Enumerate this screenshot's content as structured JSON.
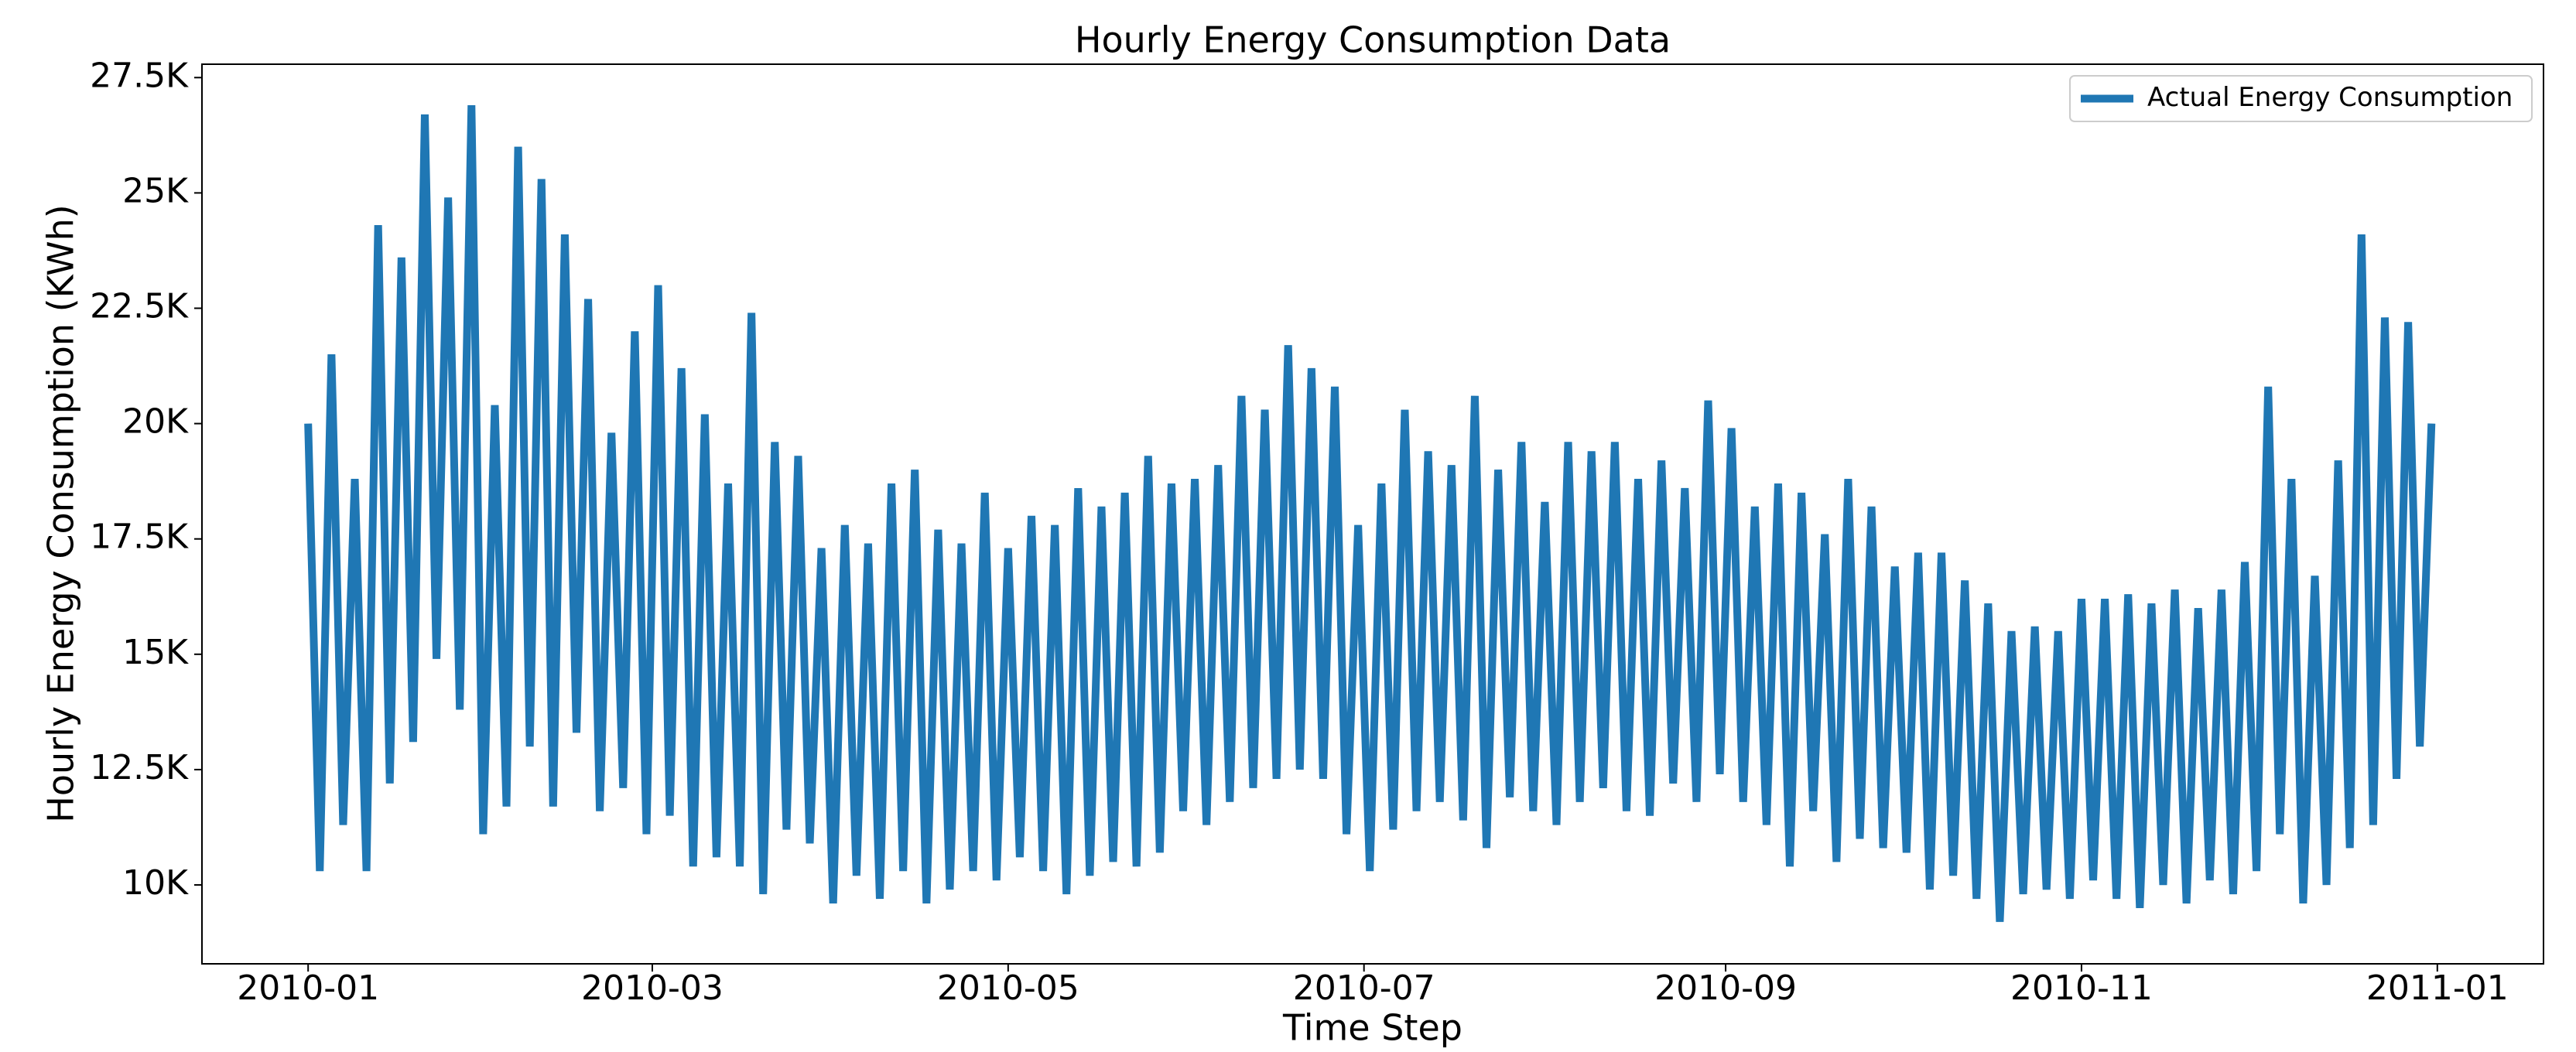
{
  "chart_data": {
    "type": "line",
    "title": "Hourly Energy Consumption Data",
    "x_label": "Time Step",
    "y_label": "Hourly Energy Consumption (KWh)",
    "xlim": [
      -18.2,
      383.2
    ],
    "xticks": [
      {
        "value": 0,
        "label": "2010-01"
      },
      {
        "value": 59,
        "label": "2010-03"
      },
      {
        "value": 120,
        "label": "2010-05"
      },
      {
        "value": 181,
        "label": "2010-07"
      },
      {
        "value": 243,
        "label": "2010-09"
      },
      {
        "value": 304,
        "label": "2010-11"
      },
      {
        "value": 365,
        "label": "2011-01"
      }
    ],
    "ylim": [
      8290,
      27790
    ],
    "yticks": [
      {
        "value": 10000,
        "label": "10K"
      },
      {
        "value": 12500,
        "label": "12.5K"
      },
      {
        "value": 15000,
        "label": "15K"
      },
      {
        "value": 17500,
        "label": "17.5K"
      },
      {
        "value": 20000,
        "label": "20K"
      },
      {
        "value": 22500,
        "label": "22.5K"
      },
      {
        "value": 25000,
        "label": "25K"
      },
      {
        "value": 27500,
        "label": "27.5K"
      }
    ],
    "grid": false,
    "legend": "upper right",
    "x": [
      0,
      2,
      4,
      6,
      8,
      10,
      12,
      14,
      16,
      18,
      20,
      22,
      24,
      26,
      28,
      30,
      32,
      34,
      36,
      38,
      40,
      42,
      44,
      46,
      48,
      50,
      52,
      54,
      56,
      58,
      60,
      62,
      64,
      66,
      68,
      70,
      72,
      74,
      76,
      78,
      80,
      82,
      84,
      86,
      88,
      90,
      92,
      94,
      96,
      98,
      100,
      102,
      104,
      106,
      108,
      110,
      112,
      114,
      116,
      118,
      120,
      122,
      124,
      126,
      128,
      130,
      132,
      134,
      136,
      138,
      140,
      142,
      144,
      146,
      148,
      150,
      152,
      154,
      156,
      158,
      160,
      162,
      164,
      166,
      168,
      170,
      172,
      174,
      176,
      178,
      180,
      182,
      184,
      186,
      188,
      190,
      192,
      194,
      196,
      198,
      200,
      202,
      204,
      206,
      208,
      210,
      212,
      214,
      216,
      218,
      220,
      222,
      224,
      226,
      228,
      230,
      232,
      234,
      236,
      238,
      240,
      242,
      244,
      246,
      248,
      250,
      252,
      254,
      256,
      258,
      260,
      262,
      264,
      266,
      268,
      270,
      272,
      274,
      276,
      278,
      280,
      282,
      284,
      286,
      288,
      290,
      292,
      294,
      296,
      298,
      300,
      302,
      304,
      306,
      308,
      310,
      312,
      314,
      316,
      318,
      320,
      322,
      324,
      326,
      328,
      330,
      332,
      334,
      336,
      338,
      340,
      342,
      344,
      346,
      348,
      350,
      352,
      354,
      356,
      358,
      360,
      362,
      364
    ],
    "series": [
      {
        "name": "Actual Energy Consumption",
        "color": "#1f77b4",
        "values": [
          20000,
          10300,
          21500,
          11300,
          18800,
          10300,
          24300,
          12200,
          23600,
          13100,
          26700,
          14900,
          24900,
          13800,
          26900,
          11100,
          20400,
          11700,
          26000,
          13000,
          25300,
          11700,
          24100,
          13300,
          22700,
          11600,
          19800,
          12100,
          22000,
          11100,
          23000,
          11500,
          21200,
          10400,
          20200,
          10600,
          18700,
          10400,
          22400,
          9800,
          19600,
          11200,
          19300,
          10900,
          17300,
          9600,
          17800,
          10200,
          17400,
          9700,
          18700,
          10300,
          19000,
          9600,
          17700,
          9900,
          17400,
          10300,
          18500,
          10100,
          17300,
          10600,
          18000,
          10300,
          17800,
          9800,
          18600,
          10200,
          18200,
          10500,
          18500,
          10400,
          19300,
          10700,
          18700,
          11600,
          18800,
          11300,
          19100,
          11800,
          20600,
          12100,
          20300,
          12300,
          21700,
          12500,
          21200,
          12300,
          20800,
          11100,
          17800,
          10300,
          18700,
          11200,
          20300,
          11600,
          19400,
          11800,
          19100,
          11400,
          20600,
          10800,
          19000,
          11900,
          19600,
          11600,
          18300,
          11300,
          19600,
          11800,
          19400,
          12100,
          19600,
          11600,
          18800,
          11500,
          19200,
          12200,
          18600,
          11800,
          20500,
          12400,
          19900,
          11800,
          18200,
          11300,
          18700,
          10400,
          18500,
          11600,
          17600,
          10500,
          18800,
          11000,
          18200,
          10800,
          16900,
          10700,
          17200,
          9900,
          17200,
          10200,
          16600,
          9700,
          16100,
          9200,
          15500,
          9800,
          15600,
          9900,
          15500,
          9700,
          16200,
          10100,
          16200,
          9700,
          16300,
          9500,
          16100,
          10000,
          16400,
          9600,
          16000,
          10100,
          16400,
          9800,
          17000,
          10300,
          20800,
          11100,
          18800,
          9600,
          16700,
          10000,
          19200,
          10800,
          24100,
          11300,
          22300,
          12300,
          22200,
          13000,
          20000
        ]
      }
    ]
  }
}
